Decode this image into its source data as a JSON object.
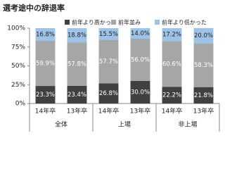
{
  "chart_data": {
    "type": "stacked_bar",
    "title": "選考途中の辞退率",
    "categories": [
      "14年卒",
      "13年卒",
      "14年卒",
      "13年卒",
      "14年卒",
      "13年卒"
    ],
    "groups": [
      "全体",
      "上場",
      "非上場"
    ],
    "series": [
      {
        "name": "前年より高かった",
        "color": "#404040",
        "values": [
          23.3,
          23.4,
          26.8,
          30.0,
          22.2,
          21.8
        ],
        "value_labels": [
          "23.3%",
          "23.4%",
          "26.8%",
          "30.0%",
          "22.2%",
          "21.8%"
        ]
      },
      {
        "name": "前年並み",
        "color": "#a6a6a6",
        "values": [
          59.9,
          57.8,
          57.7,
          56.0,
          60.6,
          58.3
        ],
        "value_labels": [
          "59.9%",
          "57.8%",
          "57.7%",
          "56.0%",
          "60.6%",
          "58.3%"
        ]
      },
      {
        "name": "前年より低かった",
        "color": "#9dc3e6",
        "values": [
          16.8,
          18.8,
          15.5,
          14.0,
          17.2,
          20.0
        ],
        "value_labels": [
          "16.8%",
          "18.8%",
          "15.5%",
          "14.0%",
          "17.2%",
          "20.0%"
        ]
      }
    ],
    "ylim": [
      0,
      100
    ],
    "yticks": [
      {
        "value": 0,
        "label": "0%"
      },
      {
        "value": 25,
        "label": "25%"
      },
      {
        "value": 50,
        "label": "50%"
      },
      {
        "value": 75,
        "label": "75%"
      },
      {
        "value": 100,
        "label": "100%"
      }
    ],
    "grid": false
  }
}
